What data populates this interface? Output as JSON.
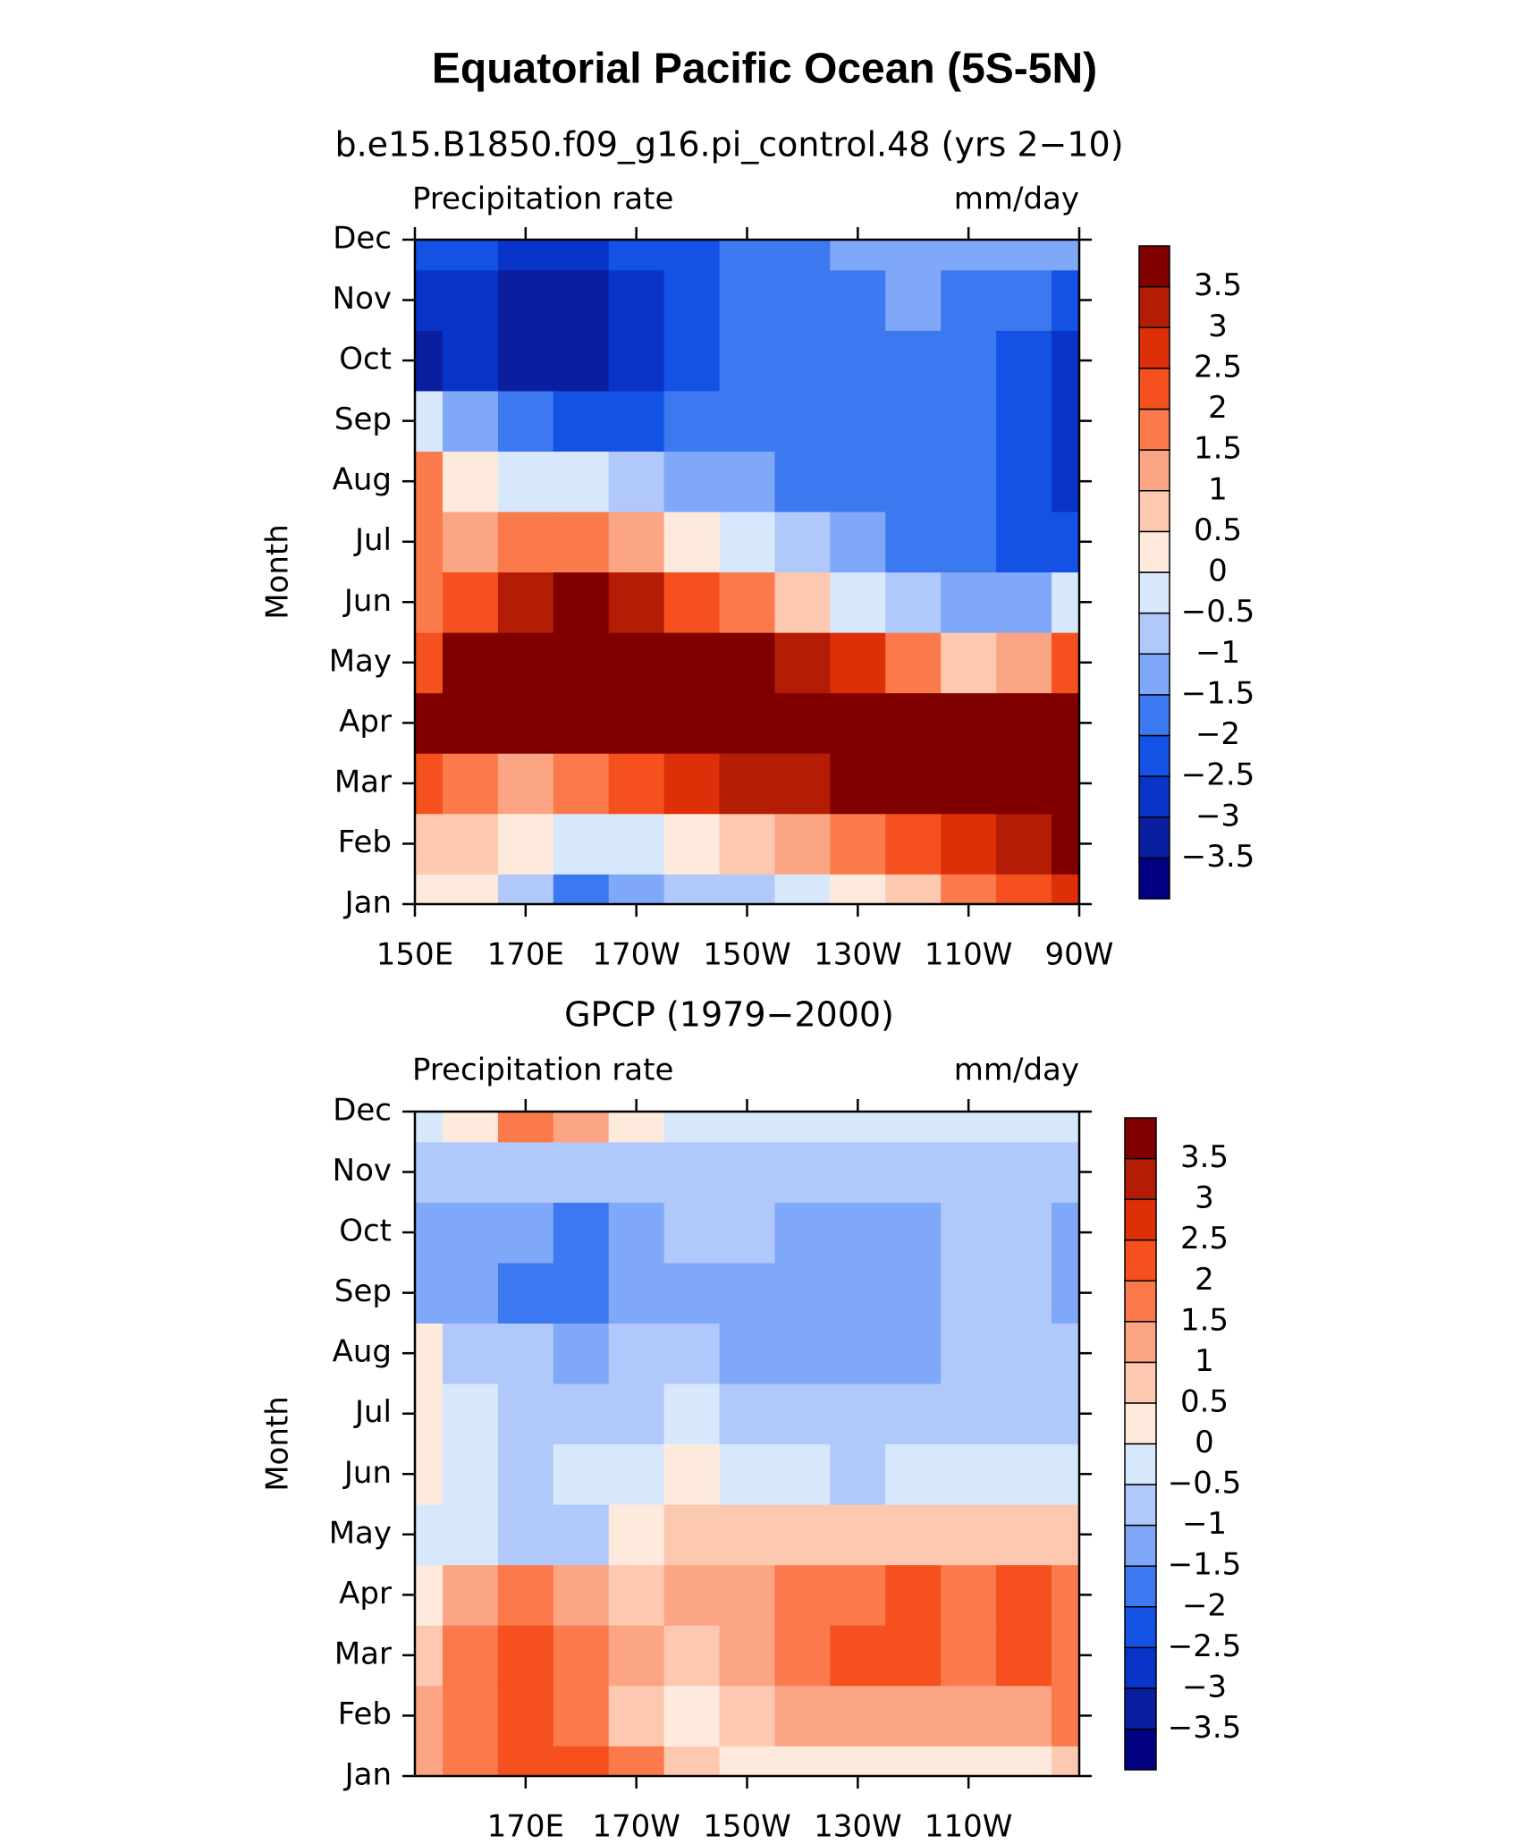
{
  "title": "Equatorial Pacific Ocean (5S-5N)",
  "chart_data": [
    {
      "type": "contour",
      "title": "b.e15.B1850.f09_g16.pi_control.48 (yrs 2−10)",
      "left_label": "Precipitation rate",
      "right_label": "mm/day",
      "ylabel": "Month",
      "x": [
        150,
        160,
        170,
        180,
        190,
        200,
        210,
        220,
        230,
        240,
        250,
        260,
        270
      ],
      "categories": [
        "Jan",
        "Feb",
        "Mar",
        "Apr",
        "May",
        "Jun",
        "Jul",
        "Aug",
        "Sep",
        "Oct",
        "Nov",
        "Dec"
      ],
      "xlim": [
        150,
        270
      ],
      "xticks": [
        {
          "value": 150,
          "label": "150E"
        },
        {
          "value": 170,
          "label": "170E"
        },
        {
          "value": 190,
          "label": "170W"
        },
        {
          "value": 210,
          "label": "150W"
        },
        {
          "value": 230,
          "label": "130W"
        },
        {
          "value": 250,
          "label": "110W"
        },
        {
          "value": 270,
          "label": "90W"
        }
      ],
      "z": [
        [
          0.3,
          0.2,
          -0.8,
          -1.8,
          -1.5,
          -1,
          -0.7,
          -0.3,
          0.2,
          0.8,
          1.5,
          2,
          2.5
        ],
        [
          0.8,
          0.5,
          0,
          -0.5,
          -0.3,
          0,
          0.5,
          1,
          1.5,
          2,
          2.5,
          3,
          3.5
        ],
        [
          2,
          1.5,
          1.2,
          1.5,
          2,
          2.5,
          3,
          3.2,
          3.5,
          3.8,
          4,
          4,
          4
        ],
        [
          3.5,
          3.8,
          4,
          4,
          4,
          4,
          4,
          4,
          4,
          4,
          4,
          4,
          4
        ],
        [
          2,
          3.5,
          4,
          4,
          4,
          3.8,
          3.5,
          3,
          2.5,
          1.5,
          0.5,
          1,
          2
        ],
        [
          1.5,
          2,
          3,
          3.5,
          3,
          2.2,
          1.5,
          0.5,
          -0.3,
          -1,
          -1.5,
          -1.3,
          -0.5
        ],
        [
          1.5,
          1,
          1.5,
          1.5,
          1,
          0.3,
          -0.5,
          -1,
          -1.5,
          -2,
          -2,
          -2.2,
          -2.5
        ],
        [
          1.5,
          0,
          -0.5,
          -0.5,
          -1,
          -1.3,
          -1.5,
          -2,
          -2,
          -2,
          -2,
          -2.3,
          -2.8
        ],
        [
          -0.5,
          -1.5,
          -2,
          -2.5,
          -2.2,
          -2,
          -2,
          -2,
          -2,
          -2,
          -2,
          -2.5,
          -3
        ],
        [
          -3.2,
          -3,
          -3.5,
          -3.2,
          -2.8,
          -2.5,
          -2,
          -2,
          -2,
          -2,
          -2,
          -2.5,
          -3
        ],
        [
          -2.8,
          -3,
          -3.5,
          -3.2,
          -2.8,
          -2.5,
          -2,
          -2,
          -1.8,
          -1.5,
          -1.8,
          -2,
          -2.5
        ],
        [
          -2.5,
          -2.5,
          -3,
          -2.7,
          -2.5,
          -2.2,
          -2,
          -1.7,
          -1.3,
          -1.2,
          -1.3,
          -1.3,
          -1.5
        ]
      ],
      "levels": [
        {
          "value": -3.5,
          "label": "−3.5"
        },
        {
          "value": -3,
          "label": "−3"
        },
        {
          "value": -2.5,
          "label": "−2.5"
        },
        {
          "value": -2,
          "label": "−2"
        },
        {
          "value": -1.5,
          "label": "−1.5"
        },
        {
          "value": -1,
          "label": "−1"
        },
        {
          "value": -0.5,
          "label": "−0.5"
        },
        0,
        0.5,
        1,
        1.5,
        2,
        2.5,
        3,
        3.5
      ],
      "colors": [
        "#000080",
        "#0a1fa0",
        "#0834c8",
        "#1452e6",
        "#3c78f0",
        "#80a8f8",
        "#b0c8fa",
        "#d8e8fc",
        "#fdeadc",
        "#fdc8b0",
        "#fca584",
        "#fa7a4c",
        "#f5501e",
        "#de3008",
        "#b41c06",
        "#800000"
      ]
    },
    {
      "type": "contour",
      "title": "GPCP (1979−2000)",
      "left_label": "Precipitation rate",
      "right_label": "mm/day",
      "ylabel": "Month",
      "x": [
        150,
        160,
        170,
        180,
        190,
        200,
        210,
        220,
        230,
        240,
        250,
        260,
        270
      ],
      "categories": [
        "Jan",
        "Feb",
        "Mar",
        "Apr",
        "May",
        "Jun",
        "Jul",
        "Aug",
        "Sep",
        "Oct",
        "Nov",
        "Dec"
      ],
      "xlim": [
        150,
        270
      ],
      "xticks": [
        {
          "value": 170,
          "label": "170E"
        },
        {
          "value": 190,
          "label": "170W"
        },
        {
          "value": 210,
          "label": "150W"
        },
        {
          "value": 230,
          "label": "130W"
        },
        {
          "value": 250,
          "label": "110W"
        }
      ],
      "z": [
        [
          1,
          1.5,
          2,
          2,
          1.5,
          0.5,
          0.3,
          0.3,
          0.3,
          0.3,
          0.3,
          0.3,
          0.5
        ],
        [
          1.2,
          1.5,
          2,
          1.5,
          0.8,
          0.4,
          0.6,
          1,
          1.1,
          1.2,
          1.3,
          1.3,
          1.5
        ],
        [
          0.8,
          1.5,
          2,
          1.5,
          1.2,
          0.6,
          1.2,
          1.6,
          2,
          2.2,
          1.5,
          2.2,
          1.8
        ],
        [
          0.4,
          1,
          1.5,
          1,
          0.8,
          1,
          1.2,
          1.7,
          1.8,
          2.2,
          1.6,
          2.2,
          1.5
        ],
        [
          -0.4,
          -0.3,
          -0.8,
          -0.7,
          0.3,
          0.5,
          0.7,
          0.7,
          0.6,
          0.6,
          0.5,
          0.5,
          0.5
        ],
        [
          0.3,
          -0.5,
          -0.8,
          -0.3,
          -0.2,
          0.1,
          -0.3,
          -0.5,
          -0.6,
          -0.5,
          -0.3,
          -0.3,
          -0.3
        ],
        [
          0.3,
          -0.5,
          -1,
          -1,
          -0.8,
          -0.5,
          -0.6,
          -0.7,
          -0.7,
          -0.7,
          -0.7,
          -1,
          -0.9
        ],
        [
          0.3,
          -0.8,
          -1,
          -1.2,
          -1,
          -1,
          -1.2,
          -1.3,
          -1.3,
          -1.3,
          -1,
          -1,
          -1
        ],
        [
          -1.2,
          -1.2,
          -2,
          -2,
          -1.5,
          -1.2,
          -1.5,
          -1.5,
          -1.5,
          -1.5,
          -1,
          -1,
          -1.2
        ],
        [
          -1.2,
          -1.2,
          -1.5,
          -1.8,
          -1.3,
          -0.8,
          -1,
          -1.2,
          -1.3,
          -1.1,
          -0.8,
          -0.8,
          -1.2
        ],
        [
          -0.6,
          -0.8,
          -0.8,
          -0.9,
          -0.8,
          -0.7,
          -0.6,
          -0.6,
          -0.6,
          -0.6,
          -0.6,
          -0.6,
          -0.6
        ],
        [
          -0.3,
          0.3,
          1.5,
          1,
          0.3,
          -0.2,
          -0.2,
          -0.3,
          -0.4,
          -0.4,
          -0.4,
          -0.4,
          -0.4
        ]
      ],
      "levels": [
        {
          "value": -3.5,
          "label": "−3.5"
        },
        {
          "value": -3,
          "label": "−3"
        },
        {
          "value": -2.5,
          "label": "−2.5"
        },
        {
          "value": -2,
          "label": "−2"
        },
        {
          "value": -1.5,
          "label": "−1.5"
        },
        {
          "value": -1,
          "label": "−1"
        },
        {
          "value": -0.5,
          "label": "−0.5"
        },
        0,
        0.5,
        1,
        1.5,
        2,
        2.5,
        3,
        3.5
      ],
      "colors": [
        "#000080",
        "#0a1fa0",
        "#0834c8",
        "#1452e6",
        "#3c78f0",
        "#80a8f8",
        "#b0c8fa",
        "#d8e8fc",
        "#fdeadc",
        "#fdc8b0",
        "#fca584",
        "#fa7a4c",
        "#f5501e",
        "#de3008",
        "#b41c06",
        "#800000"
      ]
    }
  ]
}
